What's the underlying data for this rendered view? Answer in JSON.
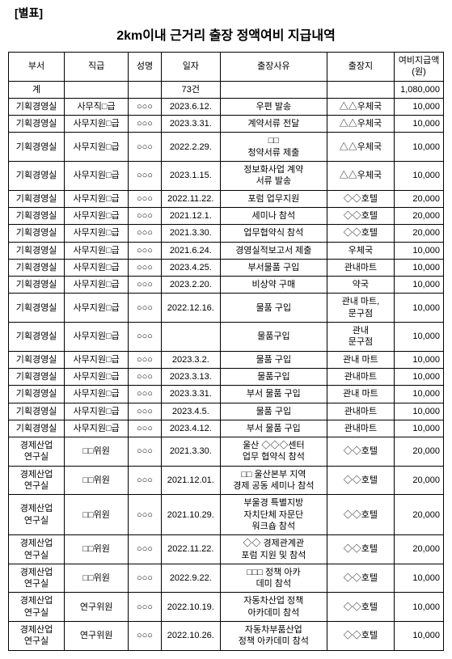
{
  "header_label": "[별표]",
  "title": "2km이내 근거리 출장 정액여비 지급내역",
  "columns": [
    "부서",
    "직급",
    "성명",
    "일자",
    "출장사유",
    "출장지",
    "여비지급액\n(원)"
  ],
  "total_row": {
    "dept": "계",
    "rank": "",
    "name": "",
    "date": "73건",
    "reason": "",
    "dest": "",
    "amount": "1,080,000"
  },
  "rows": [
    {
      "dept": "기획경영실",
      "rank": "사무직□급",
      "name": "○○○",
      "date": "2023.6.12.",
      "reason": "우편 발송",
      "dest": "△△우체국",
      "amount": "10,000"
    },
    {
      "dept": "기획경영실",
      "rank": "사무지원□급",
      "name": "○○○",
      "date": "2023.3.31.",
      "reason": "계약서류 전달",
      "dest": "△△우체국",
      "amount": "10,000"
    },
    {
      "dept": "기획경영실",
      "rank": "사무지원□급",
      "name": "○○○",
      "date": "2022.2.29.",
      "reason": "□□\n청약서류 제출",
      "dest": "△△우체국",
      "amount": "10,000"
    },
    {
      "dept": "기획경영실",
      "rank": "사무지원□급",
      "name": "○○○",
      "date": "2023.1.15.",
      "reason": "정보화사업 계약\n서류 발송",
      "dest": "△△우체국",
      "amount": "10,000"
    },
    {
      "dept": "기획경영실",
      "rank": "사무지원□급",
      "name": "○○○",
      "date": "2022.11.22.",
      "reason": "포럼 업무지원",
      "dest": "◇◇호텔",
      "amount": "20,000"
    },
    {
      "dept": "기획경영실",
      "rank": "사무지원□급",
      "name": "○○○",
      "date": "2021.12.1.",
      "reason": "세미나 참석",
      "dest": "◇◇호텔",
      "amount": "20,000"
    },
    {
      "dept": "기획경영실",
      "rank": "사무지원□급",
      "name": "○○○",
      "date": "2021.3.30.",
      "reason": "업무협약식 참석",
      "dest": "◇◇호텔",
      "amount": "20,000"
    },
    {
      "dept": "기획경영실",
      "rank": "사무지원□급",
      "name": "○○○",
      "date": "2021.6.24.",
      "reason": "경영실적보고서 제출",
      "dest": "우체국",
      "amount": "10,000"
    },
    {
      "dept": "기획경영실",
      "rank": "사무지원□급",
      "name": "○○○",
      "date": "2023.4.25.",
      "reason": "부서물품 구입",
      "dest": "관내마트",
      "amount": "10,000"
    },
    {
      "dept": "기획경영실",
      "rank": "사무지원□급",
      "name": "○○○",
      "date": "2023.2.20.",
      "reason": "비상약 구매",
      "dest": "약국",
      "amount": "10,000"
    },
    {
      "dept": "기획경영실",
      "rank": "사무지원□급",
      "name": "○○○",
      "date": "2022.12.16.",
      "reason": "물품 구입",
      "dest": "관내 마트,\n문구점",
      "amount": "10,000"
    },
    {
      "dept": "기획경영실",
      "rank": "사무지원□급",
      "name": "○○○",
      "date": "",
      "reason": "물품구입",
      "dest": "관내\n문구점",
      "amount": "10,000"
    },
    {
      "dept": "기획경영실",
      "rank": "사무지원□급",
      "name": "○○○",
      "date": "2023.3.2.",
      "reason": "물품 구입",
      "dest": "관내 마트",
      "amount": "10,000"
    },
    {
      "dept": "기획경영실",
      "rank": "사무지원□급",
      "name": "○○○",
      "date": "2023.3.13.",
      "reason": "물품구입",
      "dest": "관내마트",
      "amount": "10,000"
    },
    {
      "dept": "기획경영실",
      "rank": "사무지원□급",
      "name": "○○○",
      "date": "2023.3.31.",
      "reason": "부서 물품 구입",
      "dest": "관내 마트",
      "amount": "10,000"
    },
    {
      "dept": "기획경영실",
      "rank": "사무지원□급",
      "name": "○○○",
      "date": "2023.4.5.",
      "reason": "물품 구입",
      "dest": "관내마트",
      "amount": "10,000"
    },
    {
      "dept": "기획경영실",
      "rank": "사무지원□급",
      "name": "○○○",
      "date": "2023.4.12.",
      "reason": "부서 물품 구입",
      "dest": "관내마트",
      "amount": "10,000"
    },
    {
      "dept": "경제산업\n연구실",
      "rank": "□□위원",
      "name": "○○○",
      "date": "2021.3.30.",
      "reason": "울산 ◇◇◇센터\n업무 협약식 참석",
      "dest": "◇◇호텔",
      "amount": "20,000"
    },
    {
      "dept": "경제산업\n연구실",
      "rank": "□□위원",
      "name": "○○○",
      "date": "2021.12.01.",
      "reason": "□□ 울산본부 지역\n경제 공동 세미나 참석",
      "dest": "◇◇호텔",
      "amount": "20,000"
    },
    {
      "dept": "경제산업\n연구실",
      "rank": "□□위원",
      "name": "○○○",
      "date": "2021.10.29.",
      "reason": "부울경 특별지방\n자치단체 자문단\n워크숍 참석",
      "dest": "◇◇호텔",
      "amount": "20,000"
    },
    {
      "dept": "경제산업\n연구실",
      "rank": "□□위원",
      "name": "○○○",
      "date": "2022.11.22.",
      "reason": "◇◇ 경제관계관\n포럼 지원 및 참석",
      "dest": "◇◇호텔",
      "amount": "20,000"
    },
    {
      "dept": "경제산업\n연구실",
      "rank": "□□위원",
      "name": "○○○",
      "date": "2022.9.22.",
      "reason": "□□□ 정책 아카\n데미 참석",
      "dest": "◇◇호텔",
      "amount": "10,000"
    },
    {
      "dept": "경제산업\n연구실",
      "rank": "연구위원",
      "name": "○○○",
      "date": "2022.10.19.",
      "reason": "자동차산업 정책\n아카데미 참석",
      "dest": "◇◇호텔",
      "amount": "10,000"
    },
    {
      "dept": "경제산업\n연구실",
      "rank": "연구위원",
      "name": "○○○",
      "date": "2022.10.26.",
      "reason": "자동차부품산업\n정책 아카데미 참석",
      "dest": "◇◇호텔",
      "amount": "10,000"
    }
  ]
}
